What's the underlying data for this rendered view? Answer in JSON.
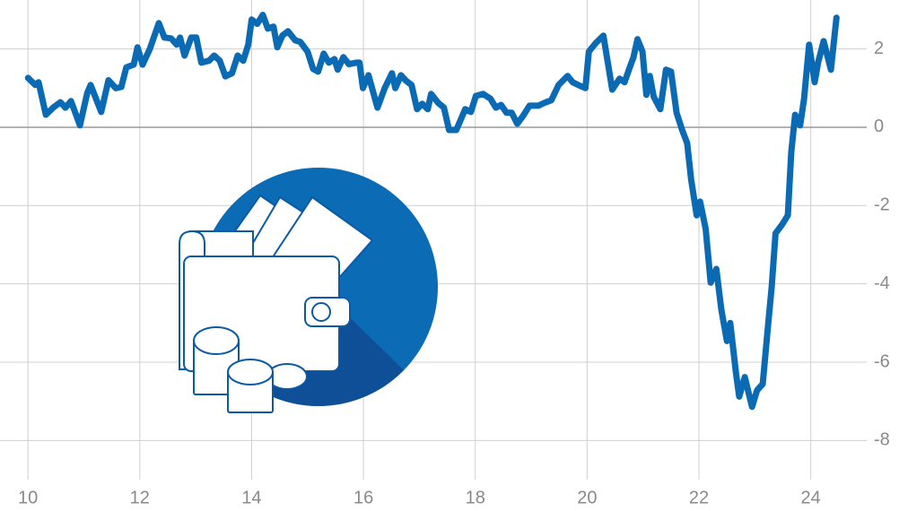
{
  "chart_data": {
    "type": "line",
    "x": [
      10.0,
      10.13,
      10.19,
      10.32,
      10.45,
      10.58,
      10.67,
      10.77,
      10.93,
      11.06,
      11.12,
      11.31,
      11.44,
      11.57,
      11.67,
      11.76,
      11.89,
      11.96,
      12.05,
      12.18,
      12.34,
      12.44,
      12.56,
      12.66,
      12.72,
      12.8,
      12.92,
      13.01,
      13.1,
      13.24,
      13.33,
      13.43,
      13.53,
      13.65,
      13.75,
      13.85,
      13.94,
      14.0,
      14.1,
      14.2,
      14.29,
      14.39,
      14.46,
      14.55,
      14.65,
      14.78,
      14.87,
      15.0,
      15.1,
      15.19,
      15.29,
      15.38,
      15.48,
      15.54,
      15.64,
      15.74,
      15.87,
      15.93,
      15.99,
      16.09,
      16.25,
      16.38,
      16.51,
      16.57,
      16.67,
      16.76,
      16.86,
      16.96,
      17.05,
      17.15,
      17.21,
      17.34,
      17.44,
      17.53,
      17.66,
      17.82,
      17.92,
      18.01,
      18.14,
      18.27,
      18.37,
      18.46,
      18.56,
      18.65,
      18.75,
      18.85,
      18.97,
      19.13,
      19.23,
      19.36,
      19.49,
      19.65,
      19.74,
      19.87,
      19.97,
      20.03,
      20.16,
      20.29,
      20.45,
      20.58,
      20.67,
      20.77,
      20.83,
      20.9,
      20.99,
      21.06,
      21.12,
      21.19,
      21.31,
      21.41,
      21.5,
      21.6,
      21.7,
      21.79,
      21.86,
      21.96,
      22.02,
      22.12,
      22.21,
      22.31,
      22.4,
      22.5,
      22.56,
      22.66,
      22.72,
      22.82,
      22.95,
      23.04,
      23.14,
      23.24,
      23.3,
      23.37,
      23.49,
      23.59,
      23.65,
      23.72,
      23.81,
      23.88,
      23.97,
      24.07,
      24.13,
      24.23,
      24.36,
      24.46
    ],
    "series": [
      {
        "color": "#0b6ab4",
        "values": [
          1.26,
          1.08,
          1.15,
          0.32,
          0.5,
          0.64,
          0.5,
          0.67,
          0.05,
          0.87,
          1.08,
          0.39,
          1.2,
          1.0,
          1.03,
          1.53,
          1.6,
          2.04,
          1.6,
          2.0,
          2.66,
          2.29,
          2.27,
          2.11,
          2.29,
          1.83,
          2.29,
          2.29,
          1.65,
          1.7,
          1.83,
          1.7,
          1.3,
          1.38,
          1.83,
          1.7,
          2.11,
          2.75,
          2.64,
          2.87,
          2.52,
          2.57,
          2.04,
          2.34,
          2.45,
          2.22,
          2.18,
          1.93,
          1.49,
          1.42,
          1.88,
          1.65,
          1.74,
          1.47,
          1.79,
          1.61,
          1.65,
          1.65,
          1.0,
          1.33,
          0.5,
          1.0,
          1.38,
          1.0,
          1.33,
          1.19,
          1.08,
          0.46,
          0.6,
          0.46,
          0.85,
          0.62,
          0.5,
          -0.07,
          -0.07,
          0.46,
          0.39,
          0.8,
          0.85,
          0.73,
          0.5,
          0.57,
          0.37,
          0.37,
          0.09,
          0.28,
          0.55,
          0.55,
          0.62,
          0.69,
          1.08,
          1.31,
          1.15,
          1.06,
          1.0,
          1.93,
          2.16,
          2.34,
          0.96,
          1.24,
          1.15,
          1.56,
          1.79,
          2.25,
          1.93,
          0.83,
          1.31,
          0.78,
          0.46,
          1.47,
          1.42,
          0.37,
          -0.07,
          -0.41,
          -1.33,
          -2.25,
          -1.9,
          -2.59,
          -3.97,
          -3.62,
          -4.66,
          -5.46,
          -5.0,
          -6.26,
          -6.88,
          -6.38,
          -7.14,
          -6.72,
          -6.56,
          -5.0,
          -4.08,
          -2.71,
          -2.48,
          -2.25,
          -0.64,
          0.32,
          0.05,
          0.73,
          2.11,
          1.15,
          1.65,
          2.2,
          1.47,
          2.8
        ]
      }
    ],
    "xlim": [
      9.5,
      25
    ],
    "xticks": [
      10,
      12,
      14,
      16,
      18,
      20,
      22,
      24
    ],
    "ylim": [
      -9,
      3.25
    ],
    "yticks": [
      -8,
      -6,
      -4,
      -2,
      0,
      2
    ],
    "grid": true
  }
}
